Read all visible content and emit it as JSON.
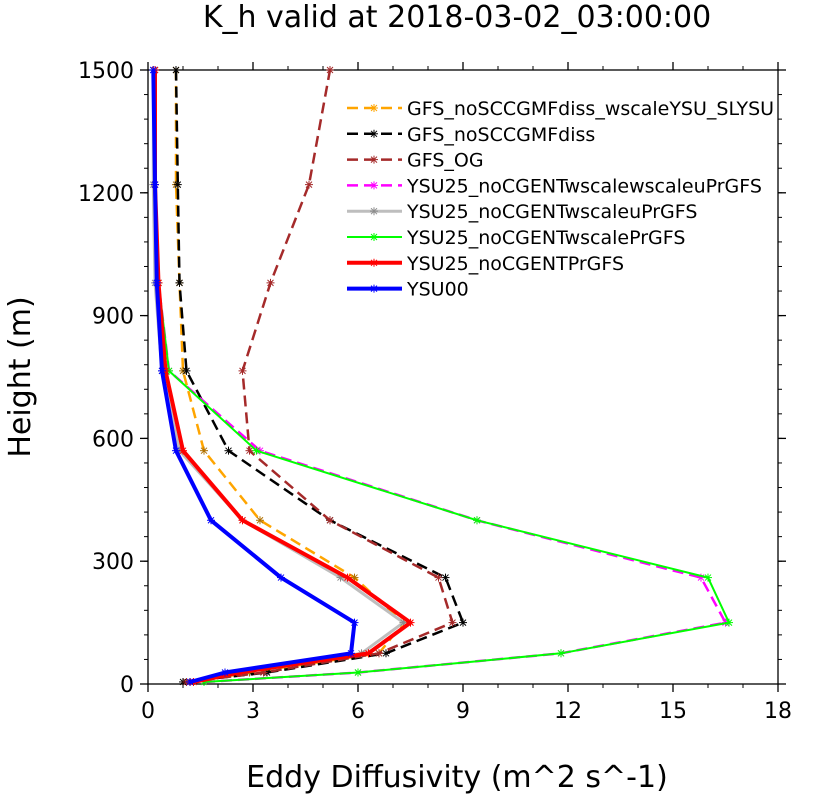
{
  "chart_data": {
    "type": "line",
    "title": "K_h valid at 2018-03-02_03:00:00",
    "xlabel": "Eddy Diffusivity (m^2 s^-1)",
    "ylabel": "Height (m)",
    "xlim": [
      0,
      18
    ],
    "ylim": [
      0,
      1500
    ],
    "xticks": [
      "0",
      "3",
      "6",
      "9",
      "12",
      "15",
      "18"
    ],
    "yticks": [
      "0",
      "300",
      "600",
      "900",
      "1200",
      "1500"
    ],
    "grid": false,
    "legend_position": "top-right",
    "series": [
      {
        "name": "GFS_noSCCGMFdiss_wscaleYSU_SLYSU",
        "color": "#ffa500",
        "dash": "dash",
        "width": 2.5,
        "x": [
          1.3,
          2.9,
          6.6,
          7.3,
          5.9,
          3.2,
          1.6,
          1.0,
          0.9,
          0.8,
          0.8
        ],
        "y": [
          5,
          28,
          75,
          150,
          260,
          400,
          570,
          765,
          980,
          1220,
          1500
        ]
      },
      {
        "name": "GFS_noSCCGMFdiss",
        "color": "#000000",
        "dash": "dash",
        "width": 2.5,
        "x": [
          1.0,
          3.4,
          6.8,
          9.0,
          8.5,
          5.2,
          2.3,
          1.1,
          0.9,
          0.85,
          0.8
        ],
        "y": [
          5,
          28,
          75,
          150,
          260,
          400,
          570,
          765,
          980,
          1220,
          1500
        ]
      },
      {
        "name": "GFS_OG",
        "color": "#a52a2a",
        "dash": "dash",
        "width": 2.5,
        "x": [
          1.1,
          3.3,
          6.6,
          8.7,
          8.3,
          5.2,
          2.9,
          2.7,
          3.5,
          4.6,
          5.2
        ],
        "y": [
          5,
          28,
          75,
          150,
          260,
          400,
          570,
          765,
          980,
          1220,
          1500
        ]
      },
      {
        "name": "YSU25_noCGENTwscalewscaleuPrGFS",
        "color": "#ff00ff",
        "dash": "dash",
        "width": 2.5,
        "x": [
          1.6,
          6.0,
          11.8,
          16.5,
          15.8,
          9.4,
          3.2,
          0.6,
          0.3,
          0.2,
          0.2
        ],
        "y": [
          5,
          28,
          75,
          150,
          260,
          400,
          570,
          765,
          980,
          1220,
          1500
        ]
      },
      {
        "name": "YSU25_noCGENTwscaleuPrGFS",
        "color": "#bebebe",
        "dash": "solid",
        "width": 3,
        "x": [
          1.3,
          2.6,
          6.1,
          7.3,
          5.5,
          2.7,
          0.9,
          0.4,
          0.2,
          0.15,
          0.15
        ],
        "y": [
          5,
          28,
          75,
          150,
          260,
          400,
          570,
          765,
          980,
          1220,
          1500
        ]
      },
      {
        "name": "YSU25_noCGENTwscalePrGFS",
        "color": "#00ff00",
        "dash": "solid",
        "width": 2,
        "x": [
          1.6,
          6.0,
          11.8,
          16.6,
          16.0,
          9.4,
          3.1,
          0.6,
          0.3,
          0.2,
          0.2
        ],
        "y": [
          5,
          28,
          75,
          150,
          260,
          400,
          570,
          765,
          980,
          1220,
          1500
        ]
      },
      {
        "name": "YSU25_noCGENTPrGFS",
        "color": "#ff0000",
        "dash": "solid",
        "width": 4,
        "x": [
          1.3,
          2.6,
          6.3,
          7.5,
          5.7,
          2.7,
          1.0,
          0.5,
          0.3,
          0.2,
          0.2
        ],
        "y": [
          5,
          28,
          75,
          150,
          260,
          400,
          570,
          765,
          980,
          1220,
          1500
        ]
      },
      {
        "name": "YSU00",
        "color": "#0000ff",
        "dash": "solid",
        "width": 4,
        "x": [
          1.2,
          2.2,
          5.8,
          5.9,
          3.8,
          1.8,
          0.8,
          0.4,
          0.25,
          0.2,
          0.15
        ],
        "y": [
          5,
          28,
          75,
          150,
          260,
          400,
          570,
          765,
          980,
          1220,
          1500
        ]
      }
    ]
  }
}
